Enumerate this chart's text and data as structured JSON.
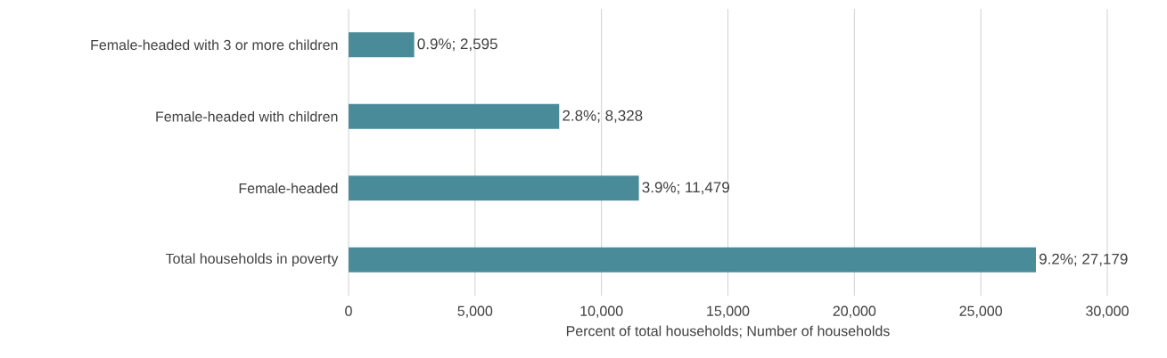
{
  "chart_data": {
    "type": "bar",
    "orientation": "horizontal",
    "categories": [
      "Female-headed with 3 or more children",
      "Female-headed with children",
      "Female-headed",
      "Total households in poverty"
    ],
    "values": [
      2595,
      8328,
      11479,
      27179
    ],
    "value_labels": [
      "0.9%; 2,595",
      "2.8%; 8,328",
      "3.9%; 11,479",
      "9.2%; 27,179"
    ],
    "color": "#4a8b9a",
    "xlabel": "Percent of total households; Number of households",
    "xlim": [
      0,
      30000
    ],
    "xticks": [
      {
        "value": 0,
        "label": "0"
      },
      {
        "value": 5000,
        "label": "5,000"
      },
      {
        "value": 10000,
        "label": "10,000"
      },
      {
        "value": 15000,
        "label": "15,000"
      },
      {
        "value": 20000,
        "label": "20,000"
      },
      {
        "value": 25000,
        "label": "25,000"
      },
      {
        "value": 30000,
        "label": "30,000"
      }
    ],
    "grid": "x"
  }
}
